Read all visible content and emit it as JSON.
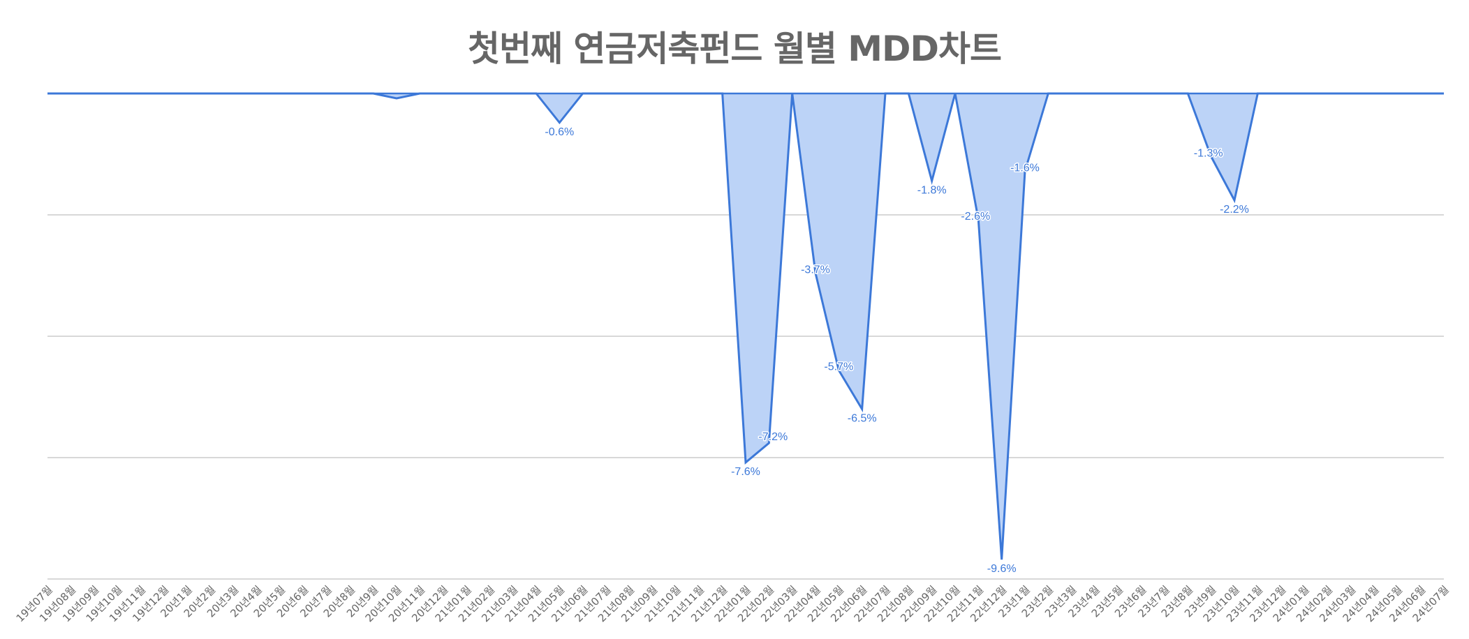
{
  "chart_data": {
    "type": "area",
    "title": "첫번째 연금저축펀드 월별 MDD차트",
    "xlabel": "",
    "ylabel": "",
    "ylim": [
      -10,
      0
    ],
    "grid": true,
    "legend": "none",
    "colors": {
      "line": "#3c78d8",
      "fill": "#bcd3f7",
      "title": "#666666",
      "grid": "#cccccc",
      "tick": "#666666"
    },
    "categories": [
      "19년07월",
      "19년08월",
      "19년09월",
      "19년10월",
      "19년11월",
      "19년12월",
      "20년1월",
      "20년2월",
      "20년3월",
      "20년4월",
      "20년5월",
      "20년6월",
      "20년7월",
      "20년8월",
      "20년9월",
      "20년10월",
      "20년11월",
      "20년12월",
      "21년01월",
      "21년02월",
      "21년03월",
      "21년04월",
      "21년05월",
      "21년06월",
      "21년07월",
      "21년08월",
      "21년09월",
      "21년10월",
      "21년11월",
      "21년12월",
      "22년01월",
      "22년02월",
      "22년03월",
      "22년04월",
      "22년05월",
      "22년06월",
      "22년07월",
      "22년08월",
      "22년09월",
      "22년10월",
      "22년11월",
      "22년12월",
      "23년1월",
      "23년2월",
      "23년3월",
      "23년4월",
      "23년5월",
      "23년6월",
      "23년7월",
      "23년8월",
      "23년9월",
      "23년10월",
      "23년11월",
      "23년12월",
      "24년01월",
      "24년02월",
      "24년03월",
      "24년04월",
      "24년05월",
      "24년06월",
      "24년07월"
    ],
    "values": [
      0,
      0,
      0,
      0,
      0,
      0,
      0,
      0,
      0,
      0,
      0,
      0,
      0,
      0,
      0,
      -0.1,
      0,
      0,
      0,
      0,
      0,
      0,
      -0.6,
      0,
      0,
      0,
      0,
      0,
      0,
      0,
      -7.6,
      -7.2,
      0,
      -3.7,
      -5.7,
      -6.5,
      0,
      0,
      -1.8,
      0,
      -2.6,
      -9.6,
      -1.6,
      0,
      0,
      0,
      0,
      0,
      0,
      0,
      -1.3,
      -2.2,
      0,
      0,
      0,
      0,
      0,
      0,
      0,
      0,
      0
    ],
    "data_labels": [
      {
        "index": 22,
        "text": "-0.6%"
      },
      {
        "index": 30,
        "text": "-7.6%"
      },
      {
        "index": 31,
        "text": "-7.2%"
      },
      {
        "index": 33,
        "text": "-3.7%"
      },
      {
        "index": 34,
        "text": "-5.7%"
      },
      {
        "index": 35,
        "text": "-6.5%"
      },
      {
        "index": 38,
        "text": "-1.8%"
      },
      {
        "index": 40,
        "text": "-2.6%"
      },
      {
        "index": 41,
        "text": "-9.6%"
      },
      {
        "index": 42,
        "text": "-1.6%"
      },
      {
        "index": 50,
        "text": "-1.3%"
      },
      {
        "index": 51,
        "text": "-2.2%"
      }
    ],
    "gridlines": [
      0,
      -2.5,
      -5,
      -7.5,
      -10
    ]
  }
}
